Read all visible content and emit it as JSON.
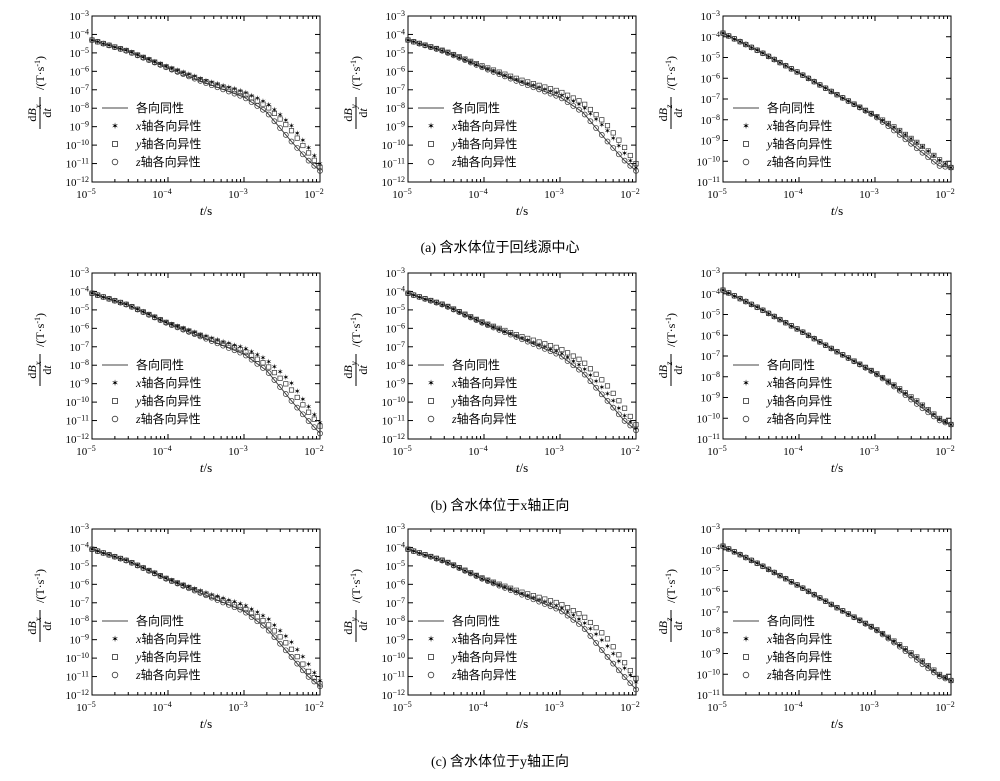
{
  "figure": {
    "rows": [
      {
        "caption": "(a) 含水体位于回线源中心",
        "panels": [
          {
            "component": "x",
            "ylim_exp": [
              -12,
              -3
            ],
            "yticks": [
              -12,
              -11,
              -10,
              -9,
              -8,
              -7,
              -6,
              -5,
              -4,
              -3
            ]
          },
          {
            "component": "y",
            "ylim_exp": [
              -12,
              -3
            ],
            "yticks": [
              -12,
              -11,
              -10,
              -9,
              -8,
              -7,
              -6,
              -5,
              -4,
              -3
            ]
          },
          {
            "component": "z",
            "ylim_exp": [
              -11,
              -3
            ],
            "yticks": [
              -11,
              -10,
              -9,
              -8,
              -7,
              -6,
              -5,
              -4,
              -3
            ]
          }
        ]
      },
      {
        "caption": "(b) 含水体位于x轴正向",
        "panels": [
          {
            "component": "x",
            "ylim_exp": [
              -12,
              -3
            ],
            "yticks": [
              -12,
              -11,
              -10,
              -9,
              -8,
              -7,
              -6,
              -5,
              -4,
              -3
            ]
          },
          {
            "component": "y",
            "ylim_exp": [
              -12,
              -3
            ],
            "yticks": [
              -12,
              -11,
              -10,
              -9,
              -8,
              -7,
              -6,
              -5,
              -4,
              -3
            ]
          },
          {
            "component": "z",
            "ylim_exp": [
              -11,
              -3
            ],
            "yticks": [
              -11,
              -10,
              -9,
              -8,
              -7,
              -6,
              -5,
              -4,
              -3
            ]
          }
        ]
      },
      {
        "caption": "(c) 含水体位于y轴正向",
        "panels": [
          {
            "component": "x",
            "ylim_exp": [
              -12,
              -3
            ],
            "yticks": [
              -12,
              -11,
              -10,
              -9,
              -8,
              -7,
              -6,
              -5,
              -4,
              -3
            ]
          },
          {
            "component": "y",
            "ylim_exp": [
              -12,
              -3
            ],
            "yticks": [
              -12,
              -11,
              -10,
              -9,
              -8,
              -7,
              -6,
              -5,
              -4,
              -3
            ]
          },
          {
            "component": "z",
            "ylim_exp": [
              -11,
              -3
            ],
            "yticks": [
              -11,
              -10,
              -9,
              -8,
              -7,
              -6,
              -5,
              -4,
              -3
            ]
          }
        ]
      }
    ]
  },
  "chart_data": {
    "type": "line",
    "x_scale": "log",
    "y_scale": "log",
    "xlim": [
      1e-05,
      0.01
    ],
    "xticks_exp": [
      -5,
      -4,
      -3,
      -2
    ],
    "xlabel": {
      "var": "t",
      "unit": "/s"
    },
    "ylabel": {
      "num": "dB",
      "den": "dt",
      "unit": "/(T·s⁻¹)"
    },
    "legend": {
      "placement": "lower-left",
      "entries": [
        {
          "prefix": "",
          "label": "各向同性",
          "marker": "line"
        },
        {
          "prefix": "x",
          "label": "轴各向异性",
          "marker": "star"
        },
        {
          "prefix": "y",
          "label": "轴各向异性",
          "marker": "square"
        },
        {
          "prefix": "z",
          "label": "轴各向异性",
          "marker": "circle"
        }
      ]
    },
    "series_names": [
      "各向同性",
      "x轴各向异性",
      "y轴各向异性",
      "z轴各向异性"
    ],
    "panels": [
      {
        "row": "a",
        "component": "x",
        "t": [
          1e-05,
          3e-05,
          0.0001,
          0.0003,
          0.001,
          0.002,
          0.004,
          0.007,
          0.01
        ],
        "isotropic": [
          5e-05,
          1.2e-05,
          1.5e-06,
          2.5e-07,
          4e-08,
          6e-09,
          2e-10,
          1.5e-11,
          4e-12
        ],
        "x_anisotropic": [
          5e-05,
          1.3e-05,
          1.8e-06,
          3.5e-07,
          8e-08,
          2e-08,
          1.5e-09,
          8e-11,
          1e-11
        ],
        "y_anisotropic": [
          5e-05,
          1.25e-05,
          1.6e-06,
          3e-07,
          6e-08,
          1.3e-08,
          8e-10,
          4e-11,
          6e-12
        ],
        "z_anisotropic": [
          5e-05,
          1.2e-05,
          1.5e-06,
          2.5e-07,
          4e-08,
          6e-09,
          2e-10,
          1.5e-11,
          4e-12
        ]
      },
      {
        "row": "a",
        "component": "y",
        "t": [
          1e-05,
          3e-05,
          0.0001,
          0.0003,
          0.001,
          0.002,
          0.004,
          0.007,
          0.01
        ],
        "isotropic": [
          5e-05,
          1.2e-05,
          1.5e-06,
          2.5e-07,
          4e-08,
          6e-09,
          2e-10,
          1.5e-11,
          4e-12
        ],
        "x_anisotropic": [
          5e-05,
          1.25e-05,
          1.6e-06,
          3e-07,
          6e-08,
          1.3e-08,
          8e-10,
          4e-11,
          6e-12
        ],
        "y_anisotropic": [
          5e-05,
          1.3e-05,
          1.8e-06,
          3.5e-07,
          8e-08,
          2e-08,
          1.5e-09,
          8e-11,
          1e-11
        ],
        "z_anisotropic": [
          5e-05,
          1.2e-05,
          1.5e-06,
          2.5e-07,
          4e-08,
          6e-09,
          2e-10,
          1.5e-11,
          4e-12
        ]
      },
      {
        "row": "a",
        "component": "z",
        "t": [
          1e-05,
          3e-05,
          0.0001,
          0.0003,
          0.001,
          0.002,
          0.004,
          0.007,
          0.01
        ],
        "isotropic": [
          0.00015,
          2e-05,
          1.8e-06,
          1.8e-07,
          1.5e-08,
          2.2e-09,
          3e-10,
          6e-11,
          5e-11
        ],
        "x_anisotropic": [
          0.00015,
          2e-05,
          1.8e-06,
          1.8e-07,
          1.6e-08,
          3.5e-09,
          6e-10,
          1.2e-10,
          5e-11
        ],
        "y_anisotropic": [
          0.00015,
          2e-05,
          1.8e-06,
          1.8e-07,
          1.6e-08,
          3.5e-09,
          6e-10,
          1.2e-10,
          5e-11
        ],
        "z_anisotropic": [
          0.00015,
          2e-05,
          1.8e-06,
          1.8e-07,
          1.5e-08,
          2.2e-09,
          3e-10,
          6e-11,
          5e-11
        ]
      },
      {
        "row": "b",
        "component": "x",
        "t": [
          1e-05,
          3e-05,
          0.0001,
          0.0003,
          0.001,
          0.002,
          0.004,
          0.007,
          0.01
        ],
        "isotropic": [
          8e-05,
          1.8e-05,
          1.8e-06,
          3e-07,
          4e-08,
          5e-09,
          1.5e-10,
          1e-11,
          2e-12
        ],
        "x_anisotropic": [
          8e-05,
          1.9e-05,
          2e-06,
          4e-07,
          9e-08,
          2e-08,
          1.5e-09,
          6e-11,
          8e-12
        ],
        "y_anisotropic": [
          8e-05,
          1.85e-05,
          1.9e-06,
          3.5e-07,
          6e-08,
          1e-08,
          6e-10,
          3e-11,
          5e-12
        ],
        "z_anisotropic": [
          8e-05,
          1.8e-05,
          1.8e-06,
          3e-07,
          4e-08,
          5e-09,
          1.5e-10,
          1e-11,
          2e-12
        ]
      },
      {
        "row": "b",
        "component": "y",
        "t": [
          1e-05,
          3e-05,
          0.0001,
          0.0003,
          0.001,
          0.002,
          0.004,
          0.007,
          0.01
        ],
        "isotropic": [
          8e-05,
          1.8e-05,
          1.8e-06,
          2.8e-07,
          3.5e-08,
          4e-09,
          1.5e-10,
          1e-11,
          3e-12
        ],
        "x_anisotropic": [
          8e-05,
          1.85e-05,
          1.9e-06,
          3.2e-07,
          5e-08,
          8e-09,
          4e-10,
          2e-11,
          4e-12
        ],
        "y_anisotropic": [
          8e-05,
          1.9e-05,
          2e-06,
          3.8e-07,
          8e-08,
          1.6e-08,
          1e-09,
          5e-11,
          6e-12
        ],
        "z_anisotropic": [
          8e-05,
          1.8e-05,
          1.8e-06,
          2.8e-07,
          3.5e-08,
          4e-09,
          1.5e-10,
          1e-11,
          3e-12
        ]
      },
      {
        "row": "b",
        "component": "z",
        "t": [
          1e-05,
          3e-05,
          0.0001,
          0.0003,
          0.001,
          0.002,
          0.004,
          0.007,
          0.01
        ],
        "isotropic": [
          0.00015,
          2e-05,
          1.8e-06,
          1.8e-07,
          1.5e-08,
          2.5e-09,
          3.5e-10,
          8e-11,
          5e-11
        ],
        "x_anisotropic": [
          0.00015,
          2e-05,
          1.8e-06,
          1.8e-07,
          1.6e-08,
          3e-09,
          5e-10,
          1e-10,
          5e-11
        ],
        "y_anisotropic": [
          0.00015,
          2e-05,
          1.8e-06,
          1.8e-07,
          1.6e-08,
          3e-09,
          5e-10,
          1e-10,
          5e-11
        ],
        "z_anisotropic": [
          0.00015,
          2e-05,
          1.8e-06,
          1.8e-07,
          1.5e-08,
          2.5e-09,
          3.5e-10,
          8e-11,
          5e-11
        ]
      },
      {
        "row": "c",
        "component": "x",
        "t": [
          1e-05,
          3e-05,
          0.0001,
          0.0003,
          0.001,
          0.002,
          0.004,
          0.007,
          0.01
        ],
        "isotropic": [
          8e-05,
          1.8e-05,
          1.8e-06,
          2.8e-07,
          3.5e-08,
          4e-09,
          1.5e-10,
          1e-11,
          3e-12
        ],
        "x_anisotropic": [
          8e-05,
          1.9e-05,
          2e-06,
          3.8e-07,
          8e-08,
          1.6e-08,
          1e-09,
          5e-11,
          6e-12
        ],
        "y_anisotropic": [
          8e-05,
          1.85e-05,
          1.9e-06,
          3.2e-07,
          5e-08,
          8e-09,
          4e-10,
          2e-11,
          4e-12
        ],
        "z_anisotropic": [
          8e-05,
          1.8e-05,
          1.8e-06,
          2.8e-07,
          3.5e-08,
          4e-09,
          1.5e-10,
          1e-11,
          3e-12
        ]
      },
      {
        "row": "c",
        "component": "y",
        "t": [
          1e-05,
          3e-05,
          0.0001,
          0.0003,
          0.001,
          0.002,
          0.004,
          0.007,
          0.01
        ],
        "isotropic": [
          8e-05,
          1.8e-05,
          1.8e-06,
          3e-07,
          4e-08,
          5e-09,
          1.5e-10,
          1e-11,
          2e-12
        ],
        "x_anisotropic": [
          8e-05,
          1.85e-05,
          1.9e-06,
          3.5e-07,
          6e-08,
          1e-08,
          6e-10,
          3e-11,
          5e-12
        ],
        "y_anisotropic": [
          8e-05,
          1.9e-05,
          2e-06,
          4e-07,
          9e-08,
          2e-08,
          1.5e-09,
          6e-11,
          8e-12
        ],
        "z_anisotropic": [
          8e-05,
          1.8e-05,
          1.8e-06,
          3e-07,
          4e-08,
          5e-09,
          1.5e-10,
          1e-11,
          2e-12
        ]
      },
      {
        "row": "c",
        "component": "z",
        "t": [
          1e-05,
          3e-05,
          0.0001,
          0.0003,
          0.001,
          0.002,
          0.004,
          0.007,
          0.01
        ],
        "isotropic": [
          0.00015,
          2e-05,
          1.8e-06,
          1.8e-07,
          1.5e-08,
          2.5e-09,
          3.5e-10,
          8e-11,
          5e-11
        ],
        "x_anisotropic": [
          0.00015,
          2e-05,
          1.8e-06,
          1.8e-07,
          1.6e-08,
          3e-09,
          5e-10,
          1e-10,
          5e-11
        ],
        "y_anisotropic": [
          0.00015,
          2e-05,
          1.8e-06,
          1.8e-07,
          1.6e-08,
          3e-09,
          5e-10,
          1e-10,
          5e-11
        ],
        "z_anisotropic": [
          0.00015,
          2e-05,
          1.8e-06,
          1.8e-07,
          1.5e-08,
          2.5e-09,
          3.5e-10,
          8e-11,
          5e-11
        ]
      }
    ]
  }
}
